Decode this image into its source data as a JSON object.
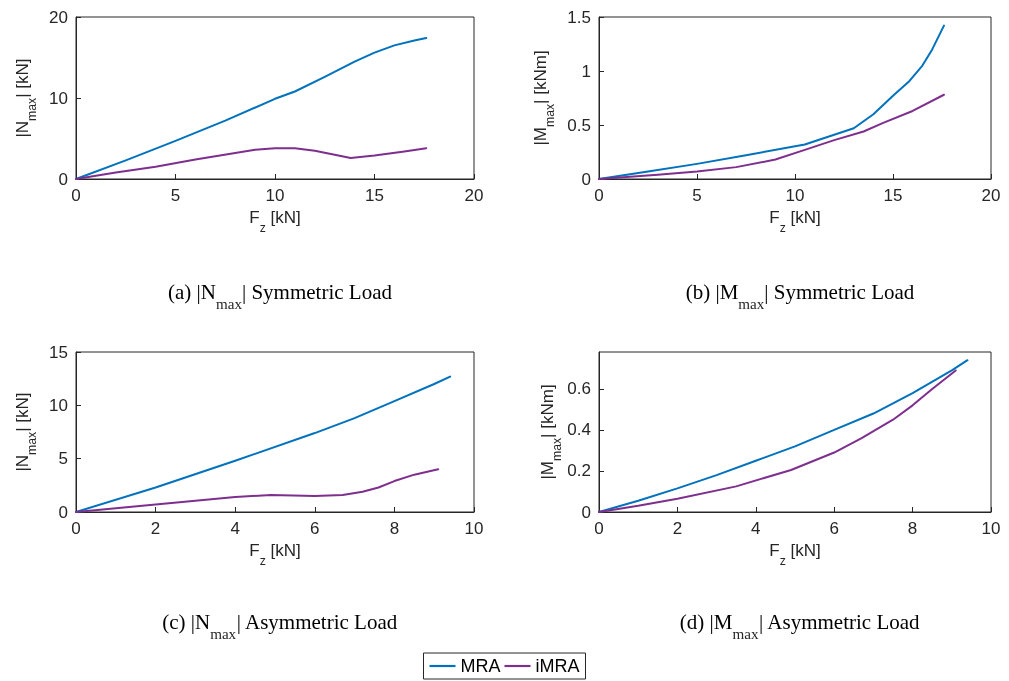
{
  "chart_data": [
    {
      "type": "line",
      "title": "(a) |N$_{max}$| Symmetric Load",
      "xlabel": "F$_{z}$ [kN]",
      "ylabel": "|N$_{max}$| [kN]",
      "xlim": [
        0,
        20
      ],
      "xticks": [
        0,
        5,
        10,
        15,
        20
      ],
      "ylim": [
        0,
        20
      ],
      "yticks": [
        0,
        10,
        20
      ],
      "grid": false,
      "legend": false,
      "series": [
        {
          "color": "#0072bd",
          "x": [
            0,
            2.5,
            5,
            7.5,
            10,
            11,
            12.5,
            14,
            15,
            16,
            17,
            17.6
          ],
          "values": [
            0,
            2.3,
            4.7,
            7.2,
            9.9,
            10.8,
            12.6,
            14.5,
            15.6,
            16.5,
            17.1,
            17.4
          ]
        },
        {
          "color": "#7e2f8e",
          "x": [
            0,
            2,
            4,
            6,
            8,
            9,
            10,
            11,
            12,
            13,
            13.8,
            15,
            16.5,
            17.6
          ],
          "values": [
            0,
            0.8,
            1.5,
            2.4,
            3.2,
            3.6,
            3.8,
            3.8,
            3.5,
            3.0,
            2.6,
            2.9,
            3.4,
            3.8
          ]
        }
      ]
    },
    {
      "type": "line",
      "title": "(b) |M$_{max}$| Symmetric Load",
      "xlabel": "F$_{z}$ [kN]",
      "ylabel": "|M$_{max}$| [kNm]",
      "xlim": [
        0,
        20
      ],
      "xticks": [
        0,
        5,
        10,
        15,
        20
      ],
      "ylim": [
        0,
        1.5
      ],
      "yticks": [
        0,
        0.5,
        1,
        1.5
      ],
      "grid": false,
      "legend": false,
      "series": [
        {
          "color": "#0072bd",
          "x": [
            0,
            2.5,
            5,
            7.5,
            10.5,
            13,
            14,
            15,
            15.8,
            16.5,
            17,
            17.6
          ],
          "values": [
            0,
            0.07,
            0.14,
            0.22,
            0.32,
            0.47,
            0.6,
            0.77,
            0.9,
            1.05,
            1.2,
            1.42
          ]
        },
        {
          "color": "#7e2f8e",
          "x": [
            0,
            3,
            5,
            7,
            9,
            10.5,
            12,
            13.5,
            14.5,
            16,
            17.6
          ],
          "values": [
            0,
            0.04,
            0.07,
            0.11,
            0.18,
            0.27,
            0.36,
            0.44,
            0.52,
            0.63,
            0.78
          ]
        }
      ]
    },
    {
      "type": "line",
      "title": "(c) |N$_{max}$| Asymmetric Load",
      "xlabel": "F$_{z}$ [kN]",
      "ylabel": "|N$_{max}$| [kN]",
      "xlim": [
        0,
        10
      ],
      "xticks": [
        0,
        2,
        4,
        6,
        8,
        10
      ],
      "ylim": [
        0,
        15
      ],
      "yticks": [
        0,
        5,
        10,
        15
      ],
      "grid": false,
      "legend": false,
      "series": [
        {
          "color": "#0072bd",
          "x": [
            0,
            2,
            4,
            6,
            7,
            8,
            9,
            9.4
          ],
          "values": [
            0,
            2.3,
            4.8,
            7.4,
            8.8,
            10.4,
            12,
            12.7
          ]
        },
        {
          "color": "#7e2f8e",
          "x": [
            0,
            2,
            4,
            4.9,
            6,
            6.7,
            7.2,
            7.6,
            8,
            8.5,
            9.1
          ],
          "values": [
            0,
            0.7,
            1.4,
            1.6,
            1.5,
            1.6,
            1.9,
            2.3,
            2.9,
            3.5,
            4.0
          ]
        }
      ]
    },
    {
      "type": "line",
      "title": "(d) |M$_{max}$| Asymmetric Load",
      "xlabel": "F$_{z}$ [kN]",
      "ylabel": "|M$_{max}$| [kNm]",
      "xlim": [
        0,
        10
      ],
      "xticks": [
        0,
        2,
        4,
        6,
        8,
        10
      ],
      "ylim": [
        0,
        0.78
      ],
      "yticks": [
        0,
        0.2,
        0.4,
        0.6
      ],
      "grid": false,
      "legend": "bottom",
      "series": [
        {
          "name": "MRA",
          "color": "#0072bd",
          "x": [
            0,
            1,
            2,
            3,
            4,
            5,
            6,
            7,
            8,
            9,
            9.4
          ],
          "values": [
            0,
            0.055,
            0.115,
            0.18,
            0.25,
            0.32,
            0.4,
            0.48,
            0.58,
            0.69,
            0.74
          ]
        },
        {
          "name": "iMRA",
          "color": "#7e2f8e",
          "x": [
            0,
            1,
            2,
            3.5,
            4.9,
            6,
            6.7,
            7.5,
            8,
            8.5,
            9.1
          ],
          "values": [
            0,
            0.03,
            0.065,
            0.125,
            0.205,
            0.29,
            0.36,
            0.45,
            0.52,
            0.6,
            0.69
          ]
        }
      ]
    }
  ]
}
